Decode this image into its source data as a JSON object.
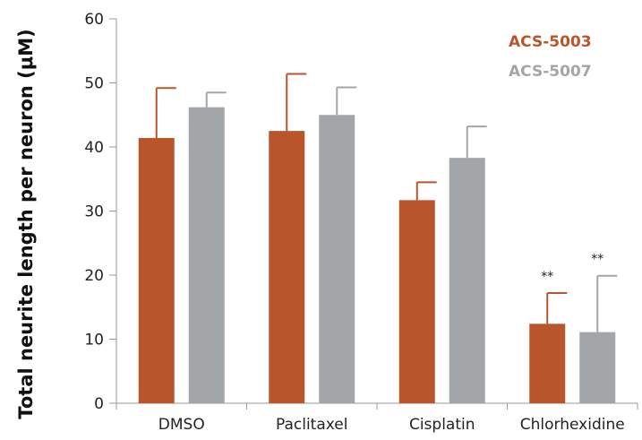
{
  "chart_data": {
    "type": "bar",
    "title": "",
    "xlabel": "",
    "ylabel": "Total neurite length per neuron (μM)",
    "ylim": [
      0,
      60
    ],
    "yticks": [
      0,
      10,
      20,
      30,
      40,
      50,
      60
    ],
    "categories": [
      "DMSO",
      "Paclitaxel",
      "Cisplatin",
      "Chlorhexidine"
    ],
    "series": [
      {
        "name": "ACS-5003",
        "color": "#b8552a",
        "values": [
          41.4,
          42.5,
          31.7,
          12.4
        ],
        "error": [
          7.8,
          8.9,
          2.8,
          4.8
        ],
        "annotations": [
          "",
          "",
          "",
          "**"
        ]
      },
      {
        "name": "ACS-5007",
        "color": "#a3a6a8",
        "values": [
          46.2,
          45.0,
          38.3,
          11.1
        ],
        "error": [
          2.3,
          4.3,
          4.9,
          8.8
        ],
        "annotations": [
          "",
          "",
          "",
          "**"
        ]
      }
    ],
    "grid": false,
    "legend_position": "top-right"
  }
}
